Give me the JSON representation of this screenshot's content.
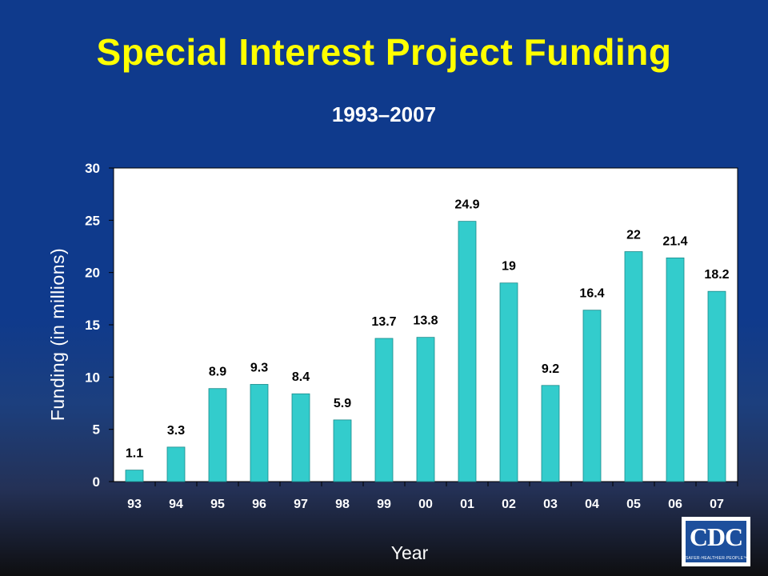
{
  "slide": {
    "title": "Special Interest Project Funding",
    "subtitle": "1993–2007"
  },
  "chart_data": {
    "type": "bar",
    "ylabel": "Funding (in millions)",
    "xlabel": "Year",
    "categories": [
      "93",
      "94",
      "95",
      "96",
      "97",
      "98",
      "99",
      "00",
      "01",
      "02",
      "03",
      "04",
      "05",
      "06",
      "07"
    ],
    "values": [
      1.1,
      3.3,
      8.9,
      9.3,
      8.4,
      5.9,
      13.7,
      13.8,
      24.9,
      19,
      9.2,
      16.4,
      22,
      21.4,
      18.2
    ],
    "data_labels": [
      "1.1",
      "3.3",
      "8.9",
      "9.3",
      "8.4",
      "5.9",
      "13.7",
      "13.8",
      "24.9",
      "19",
      "9.2",
      "16.4",
      "22",
      "21.4",
      "18.2"
    ],
    "ylim": [
      0,
      30
    ],
    "yticks": [
      0,
      5,
      10,
      15,
      20,
      25,
      30
    ],
    "grid": false,
    "colors": {
      "bar": "#33cccc",
      "background": "#ffffff",
      "axis": "#000000",
      "label": "#000000"
    }
  },
  "logo": {
    "text": "CDC",
    "tagline": "SAFER·HEALTHIER·PEOPLE™"
  }
}
